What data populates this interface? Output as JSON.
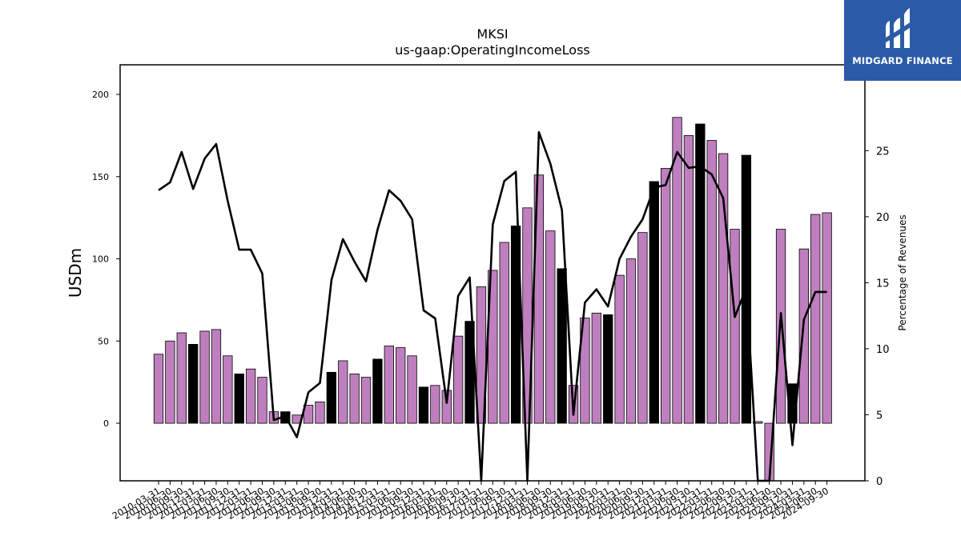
{
  "chart_data": {
    "type": "bar",
    "title": "MKSI",
    "subtitle": "us-gaap:OperatingIncomeLoss",
    "ylabel": "USDm",
    "y2label": "Percentage of Revenues",
    "ylim": [
      -35,
      218
    ],
    "y2lim": [
      0,
      31.5
    ],
    "yticks": [
      0,
      50,
      100,
      150,
      200
    ],
    "y2ticks": [
      0,
      5,
      10,
      15,
      20,
      25
    ],
    "grid": false,
    "bar_colors": {
      "quarter": "#bf7fbf",
      "annual": "#000000"
    },
    "line_color": "#000000",
    "categories": [
      "2010-03-31",
      "2010-06-30",
      "2010-09-30",
      "2010-12-31",
      "2011-03-31",
      "2011-06-30",
      "2011-09-30",
      "2011-12-31",
      "2012-03-31",
      "2012-06-30",
      "2012-09-30",
      "2012-12-31",
      "2013-03-31",
      "2013-06-30",
      "2013-09-30",
      "2013-12-31",
      "2014-03-31",
      "2014-06-30",
      "2014-09-30",
      "2014-12-31",
      "2015-03-31",
      "2015-06-30",
      "2015-09-30",
      "2015-12-31",
      "2016-03-31",
      "2016-06-30",
      "2016-09-30",
      "2016-12-31",
      "2017-03-31",
      "2017-06-30",
      "2017-09-30",
      "2017-12-31",
      "2018-03-31",
      "2018-06-30",
      "2018-09-30",
      "2018-12-31",
      "2019-03-31",
      "2019-06-30",
      "2019-09-30",
      "2019-12-31",
      "2020-03-31",
      "2020-06-30",
      "2020-09-30",
      "2020-12-31",
      "2021-03-31",
      "2021-06-30",
      "2021-09-30",
      "2021-12-31",
      "2022-03-31",
      "2022-06-30",
      "2022-09-30",
      "2022-12-31",
      "2023-03-31",
      "2023-06-30",
      "2023-09-30",
      "2023-12-31",
      "2024-03-31",
      "2024-06-30",
      "2024-09-30"
    ],
    "values": [
      42,
      50,
      55,
      48,
      56,
      57,
      41,
      30,
      33,
      28,
      7,
      7,
      5,
      11,
      13,
      31,
      38,
      30,
      28,
      39,
      47,
      46,
      41,
      22,
      23,
      20,
      53,
      62,
      83,
      93,
      110,
      120,
      131,
      151,
      117,
      94,
      23,
      64,
      67,
      66,
      90,
      100,
      116,
      147,
      155,
      186,
      175,
      182,
      172,
      164,
      118,
      163,
      1,
      -35,
      118,
      24,
      106,
      127,
      128
    ],
    "annual": [
      false,
      false,
      false,
      true,
      false,
      false,
      false,
      true,
      false,
      false,
      false,
      true,
      false,
      false,
      false,
      true,
      false,
      false,
      false,
      true,
      false,
      false,
      false,
      true,
      false,
      false,
      false,
      true,
      false,
      false,
      false,
      true,
      false,
      false,
      false,
      true,
      false,
      false,
      false,
      true,
      false,
      false,
      false,
      true,
      false,
      false,
      false,
      true,
      false,
      false,
      false,
      true,
      false,
      false,
      false,
      true,
      false,
      false,
      false
    ],
    "pct_of_revenues": [
      22.0,
      22.6,
      24.9,
      22.1,
      24.4,
      25.5,
      21.2,
      17.5,
      17.5,
      15.7,
      4.6,
      4.9,
      3.3,
      6.7,
      7.4,
      15.2,
      18.3,
      16.6,
      15.1,
      19.0,
      22.0,
      21.2,
      19.8,
      12.9,
      12.3,
      5.9,
      14.0,
      15.4,
      0.0,
      19.4,
      22.7,
      23.4,
      0.0,
      26.4,
      24.0,
      20.5,
      5.0,
      13.5,
      14.5,
      13.2,
      16.8,
      18.5,
      19.8,
      22.2,
      22.4,
      24.9,
      23.7,
      23.8,
      23.2,
      21.4,
      12.4,
      14.6,
      0.0,
      0.0,
      12.7,
      2.7,
      12.2,
      14.3,
      14.3
    ]
  },
  "logo": {
    "wordmark": "MIDGARD FINANCE"
  }
}
